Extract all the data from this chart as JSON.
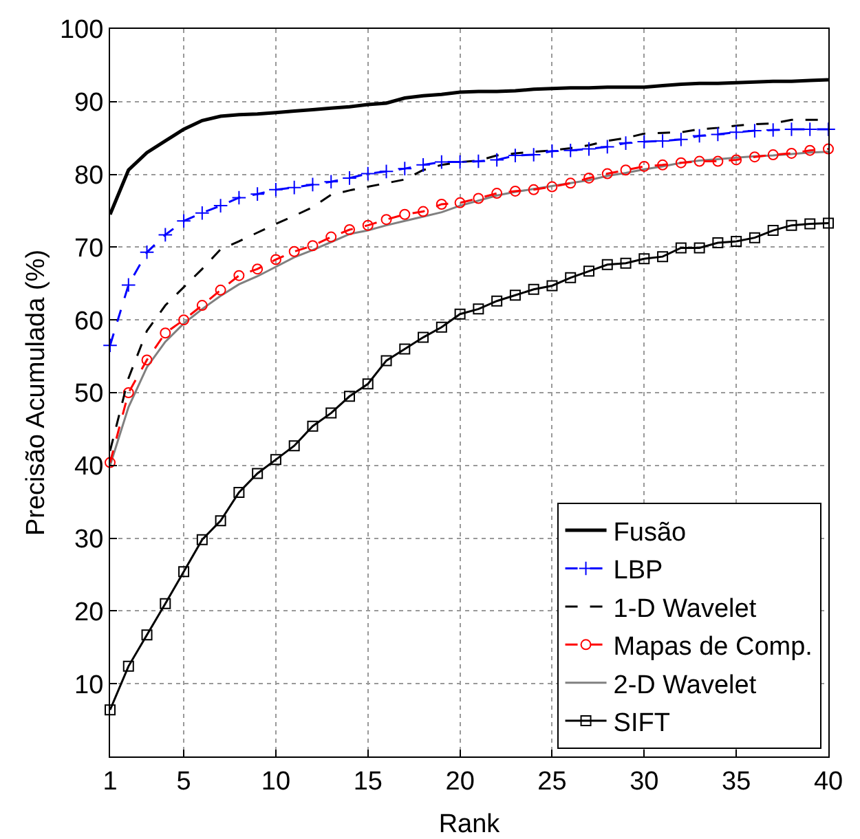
{
  "chart_data": {
    "type": "line",
    "xlabel": "Rank",
    "ylabel": "Precisão Acumulada (%)",
    "x": [
      1,
      2,
      3,
      4,
      5,
      6,
      7,
      8,
      9,
      10,
      11,
      12,
      13,
      14,
      15,
      16,
      17,
      18,
      19,
      20,
      21,
      22,
      23,
      24,
      25,
      26,
      27,
      28,
      29,
      30,
      31,
      32,
      33,
      34,
      35,
      36,
      37,
      38,
      39,
      40
    ],
    "xlim": [
      1,
      40
    ],
    "xticks": [
      1,
      5,
      10,
      15,
      20,
      25,
      30,
      35,
      40
    ],
    "ylim": [
      0,
      100
    ],
    "yticks": [
      10,
      20,
      30,
      40,
      50,
      60,
      70,
      80,
      90,
      100
    ],
    "grid": true,
    "legend": "bottom right",
    "series": [
      {
        "name": "Fusão",
        "color": "#000000",
        "marker": "none",
        "line_style": "solid",
        "values": [
          74.5,
          80.6,
          83,
          84.6,
          86.2,
          87.4,
          88,
          88.2,
          88.3,
          88.5,
          88.7,
          88.9,
          89.1,
          89.3,
          89.6,
          89.8,
          90.5,
          90.8,
          91,
          91.3,
          91.4,
          91.4,
          91.5,
          91.7,
          91.8,
          91.9,
          91.9,
          92,
          92,
          92,
          92.2,
          92.4,
          92.5,
          92.5,
          92.6,
          92.7,
          92.8,
          92.8,
          92.9,
          93
        ]
      },
      {
        "name": "LBP",
        "color": "#0000ff",
        "marker": "cross",
        "line_style": "dashed",
        "values": [
          56.5,
          64.8,
          69.3,
          71.7,
          73.6,
          74.7,
          75.7,
          76.8,
          77.3,
          77.9,
          78.2,
          78.6,
          79,
          79.5,
          80.1,
          80.4,
          80.8,
          81.3,
          81.7,
          81.7,
          81.8,
          82,
          82.6,
          82.7,
          83.2,
          83.3,
          83.5,
          83.8,
          84.3,
          84.5,
          84.6,
          84.8,
          85.3,
          85.5,
          85.8,
          86,
          86.1,
          86.2,
          86.2,
          86.2
        ]
      },
      {
        "name": "1-D Wavelet",
        "color": "#000000",
        "marker": "none",
        "line_style": "dashed",
        "values": [
          42,
          52,
          58.5,
          62,
          64.5,
          67,
          69.7,
          70.8,
          72,
          73.2,
          74.3,
          75.5,
          77.2,
          77.8,
          78.3,
          78.8,
          79.3,
          80.6,
          81.3,
          81.7,
          81.9,
          82.6,
          82.9,
          83.1,
          83.3,
          83.6,
          84,
          84.6,
          85,
          85.6,
          85.7,
          85.8,
          86.2,
          86.4,
          86.7,
          86.9,
          87,
          87.5,
          87.5,
          87.5
        ]
      },
      {
        "name": "Mapas de Comp.",
        "color": "#ff0000",
        "marker": "circle",
        "line_style": "dashed",
        "values": [
          40.4,
          50,
          54.5,
          58.2,
          60,
          62,
          64.1,
          66.1,
          67,
          68.3,
          69.4,
          70.2,
          71.4,
          72.4,
          73,
          73.8,
          74.5,
          74.9,
          75.9,
          76.1,
          76.7,
          77.4,
          77.7,
          77.9,
          78.3,
          78.8,
          79.5,
          80.1,
          80.6,
          81.1,
          81.3,
          81.6,
          81.8,
          81.8,
          82,
          82.4,
          82.7,
          82.9,
          83.3,
          83.5
        ]
      },
      {
        "name": "2-D Wavelet",
        "color": "#808080",
        "marker": "none",
        "line_style": "solid",
        "values": [
          40,
          48,
          53.5,
          57,
          59.5,
          61.5,
          63.3,
          64.9,
          66,
          67.3,
          68.6,
          69.6,
          70.7,
          71.8,
          72.3,
          73,
          73.6,
          74.2,
          74.8,
          75.7,
          76.4,
          77.1,
          77.6,
          78,
          78.4,
          78.8,
          79.2,
          79.8,
          80.2,
          80.7,
          81.1,
          81.6,
          81.9,
          82.1,
          82.3,
          82.5,
          82.6,
          82.8,
          83,
          83.1
        ]
      },
      {
        "name": "SIFT",
        "color": "#000000",
        "marker": "square",
        "line_style": "solid",
        "values": [
          6.4,
          12.4,
          16.7,
          21,
          25.4,
          29.8,
          32.4,
          36.3,
          38.9,
          40.8,
          42.7,
          45.4,
          47.2,
          49.5,
          51.2,
          54.4,
          56,
          57.6,
          59,
          60.8,
          61.5,
          62.6,
          63.4,
          64.2,
          64.7,
          65.8,
          66.7,
          67.6,
          67.8,
          68.4,
          68.7,
          69.9,
          69.9,
          70.6,
          70.8,
          71.3,
          72.3,
          73,
          73.2,
          73.3
        ]
      }
    ]
  }
}
